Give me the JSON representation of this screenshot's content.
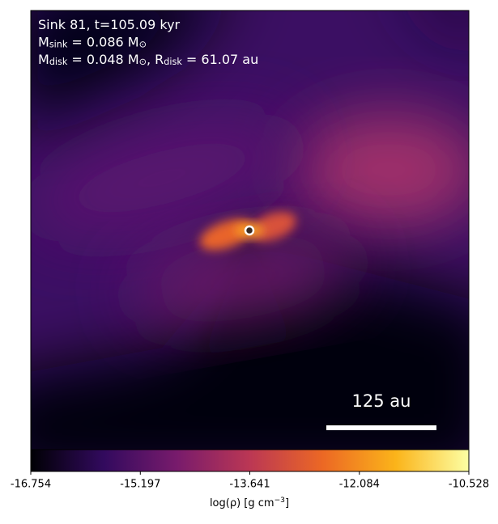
{
  "chart_data": {
    "type": "image",
    "annotations": [
      [
        {
          "text": "Sink 81, t=105.09 kyr"
        }
      ],
      [
        {
          "text": "M"
        },
        {
          "sub": "sink"
        },
        {
          "text": " = 0.086 M"
        },
        {
          "sub": "⊙"
        }
      ],
      [
        {
          "text": "M"
        },
        {
          "sub": "disk"
        },
        {
          "text": " = 0.048 M"
        },
        {
          "sub": "⊙"
        },
        {
          "text": ", R"
        },
        {
          "sub": "disk"
        },
        {
          "text": " = 61.07 au"
        }
      ]
    ],
    "scale_bar_label": "125 au",
    "colorbar_label": [
      {
        "text": "log(ρ) [g cm"
      },
      {
        "sup": "−3"
      },
      {
        "text": "]"
      }
    ],
    "colormap": [
      "#000004",
      "#320a5e",
      "#781b6c",
      "#bb3754",
      "#ec6824",
      "#fbb41a",
      "#fcffa4"
    ],
    "clim": [
      -16.754,
      -10.528
    ],
    "cticks": [
      -16.754,
      -15.197,
      -13.641,
      -12.084,
      -10.528
    ]
  }
}
